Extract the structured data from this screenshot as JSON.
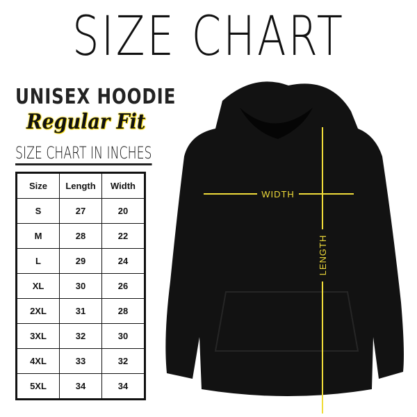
{
  "title": "SIZE CHART",
  "product": "UNISEX HOODIE",
  "fit": "Regular Fit",
  "table_title": "SIZE CHART IN INCHES",
  "headers": [
    "Size",
    "Length",
    "Width"
  ],
  "rows": [
    [
      "S",
      "27",
      "20"
    ],
    [
      "M",
      "28",
      "22"
    ],
    [
      "L",
      "29",
      "24"
    ],
    [
      "XL",
      "30",
      "26"
    ],
    [
      "2XL",
      "31",
      "28"
    ],
    [
      "3XL",
      "32",
      "30"
    ],
    [
      "4XL",
      "33",
      "32"
    ],
    [
      "5XL",
      "34",
      "34"
    ]
  ],
  "labels": {
    "width": "WIDTH",
    "length": "LENGTH"
  },
  "colors": {
    "garment": "#111111",
    "measure_lines": "#f0dc3a"
  }
}
